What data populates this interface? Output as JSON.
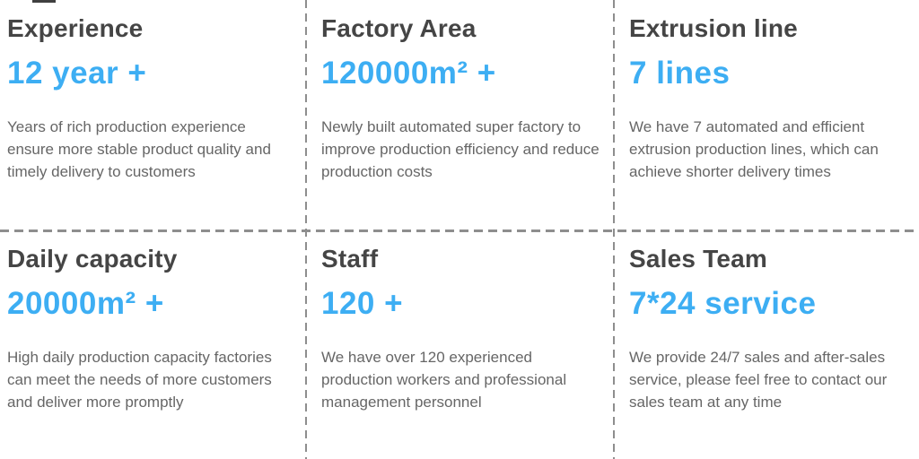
{
  "colors": {
    "accent": "#3daef3",
    "heading": "#454545",
    "body": "#666666",
    "divider": "#8e8e8e",
    "bg": "#ffffff"
  },
  "cells": [
    {
      "title": "Experience",
      "value": "12 year +",
      "description": "Years of rich production experience ensure more stable product quality and timely delivery to customers"
    },
    {
      "title": "Factory Area",
      "value": "120000m² +",
      "description": "Newly built automated super factory to improve production efficiency and reduce production costs"
    },
    {
      "title": "Extrusion line",
      "value": "7 lines",
      "description": "We have 7 automated and efficient extrusion production lines, which can achieve shorter delivery times"
    },
    {
      "title": "Daily capacity",
      "value": "20000m² +",
      "description": "High daily production capacity factories can meet the needs of more customers and deliver more promptly"
    },
    {
      "title": "Staff",
      "value": "120 +",
      "description": "We have over 120 experienced production workers and professional management personnel"
    },
    {
      "title": "Sales Team",
      "value": "7*24 service",
      "description": "We provide 24/7 sales and after-sales service, please feel free to contact our sales team at any time"
    }
  ]
}
